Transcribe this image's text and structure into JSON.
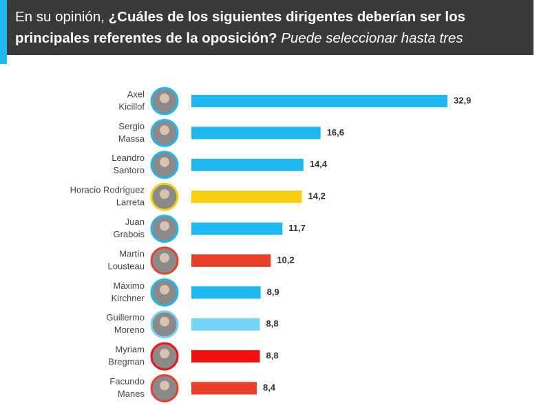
{
  "chart_data": {
    "type": "bar",
    "orientation": "horizontal",
    "title": [
      "En su opinión,",
      "¿Cuáles de los siguientes dirigentes deberían ser los principales referentes de la oposición?",
      "Puede seleccionar hasta tres"
    ],
    "categories": [
      [
        "Axel",
        "Kicillof"
      ],
      [
        "Sergio",
        "Massa"
      ],
      [
        "Leandro",
        "Santoro"
      ],
      [
        "Horacio Rodríguez",
        "Larreta"
      ],
      [
        "Juan",
        "Grabois"
      ],
      [
        "Martín",
        "Lousteau"
      ],
      [
        "Máximo",
        "Kirchner"
      ],
      [
        "Guillermo",
        "Moreno"
      ],
      [
        "Myriam",
        "Bregman"
      ],
      [
        "Facundo",
        "Manes"
      ]
    ],
    "values": [
      32.9,
      16.6,
      14.4,
      14.2,
      11.7,
      10.2,
      8.9,
      8.8,
      8.8,
      8.4
    ],
    "value_labels": [
      "32,9",
      "16,6",
      "14,4",
      "14,2",
      "11,7",
      "10,2",
      "8,9",
      "8,8",
      "8,8",
      "8,4"
    ],
    "colors": [
      "#1fb8f0",
      "#1fb8f0",
      "#1fb8f0",
      "#f8cf0f",
      "#1fb8f0",
      "#e8402a",
      "#1fb8f0",
      "#76d4f7",
      "#f0100f",
      "#e8402a"
    ]
  }
}
